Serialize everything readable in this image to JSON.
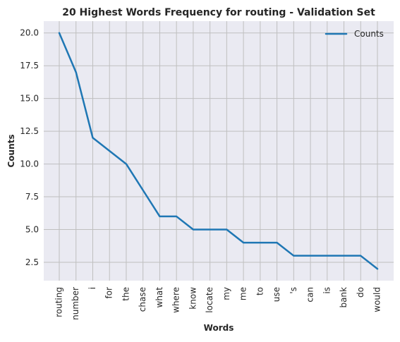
{
  "chart_data": {
    "type": "line",
    "title": "20 Highest Words Frequency for routing - Validation Set",
    "xlabel": "Words",
    "ylabel": "Counts",
    "categories": [
      "routing",
      "number",
      "i",
      "for",
      "the",
      "chase",
      "what",
      "where",
      "know",
      "locate",
      "my",
      "me",
      "to",
      "use",
      "'s",
      "can",
      "is",
      "bank",
      "do",
      "would"
    ],
    "series": [
      {
        "name": "Counts",
        "values": [
          20,
          17,
          12,
          11,
          10,
          8,
          6,
          6,
          5,
          5,
          5,
          4,
          4,
          4,
          3,
          3,
          3,
          3,
          3,
          2
        ],
        "color": "#1f77b4"
      }
    ],
    "ylim": [
      1.1,
      20.9
    ],
    "yticks": [
      "2.5",
      "5.0",
      "7.5",
      "10.0",
      "12.5",
      "15.0",
      "17.5",
      "20.0"
    ],
    "grid": true,
    "legend_position": "top-right",
    "background_color": "#eaeaf2",
    "grid_color": "#bfbfbf"
  }
}
